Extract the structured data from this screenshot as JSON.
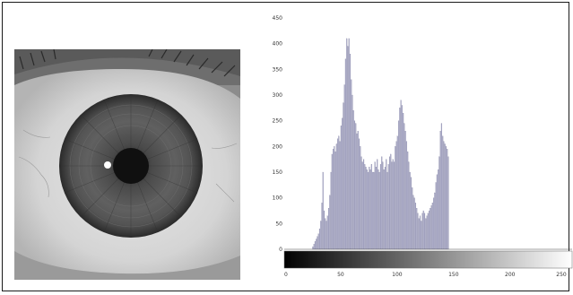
{
  "colors": {
    "frame": "#1a1a1a",
    "bars": "#a9a9c8",
    "bar_edge": "#7a7a9a",
    "axis": "#444444",
    "gradient_start": "#000000",
    "gradient_end": "#ffffff"
  },
  "image_panel": {
    "subject": "grayscale close-up photograph of a human eye (iris)"
  },
  "chart_data": {
    "type": "bar",
    "title": "",
    "xlabel": "",
    "ylabel": "",
    "xlim": [
      0,
      255
    ],
    "ylim": [
      0,
      450
    ],
    "grid": false,
    "legend": "none",
    "colorbar": "grayscale gradient black to white along x-axis",
    "y_ticks": [
      0,
      50,
      100,
      150,
      200,
      250,
      300,
      350,
      400,
      450
    ],
    "x_ticks": [
      0,
      50,
      100,
      150,
      200,
      250
    ],
    "x_tick_labels": [
      "0",
      "50",
      "100",
      "150",
      "200",
      "250"
    ],
    "x_start": 25,
    "x_step": 1,
    "values": [
      5,
      10,
      15,
      20,
      25,
      30,
      40,
      55,
      90,
      150,
      75,
      60,
      55,
      65,
      80,
      105,
      150,
      185,
      195,
      200,
      190,
      205,
      215,
      220,
      210,
      240,
      255,
      285,
      320,
      370,
      410,
      395,
      410,
      380,
      330,
      300,
      270,
      250,
      245,
      225,
      230,
      215,
      200,
      180,
      170,
      175,
      165,
      160,
      155,
      150,
      160,
      155,
      165,
      150,
      150,
      170,
      160,
      175,
      155,
      150,
      165,
      180,
      170,
      155,
      160,
      175,
      150,
      165,
      180,
      185,
      170,
      175,
      170,
      200,
      210,
      220,
      250,
      275,
      290,
      280,
      265,
      245,
      230,
      210,
      190,
      170,
      150,
      140,
      120,
      105,
      100,
      90,
      80,
      70,
      60,
      65,
      55,
      70,
      75,
      70,
      60,
      65,
      70,
      75,
      80,
      85,
      90,
      100,
      110,
      130,
      145,
      155,
      180,
      230,
      245,
      220,
      210,
      205,
      200,
      195,
      180
    ]
  }
}
